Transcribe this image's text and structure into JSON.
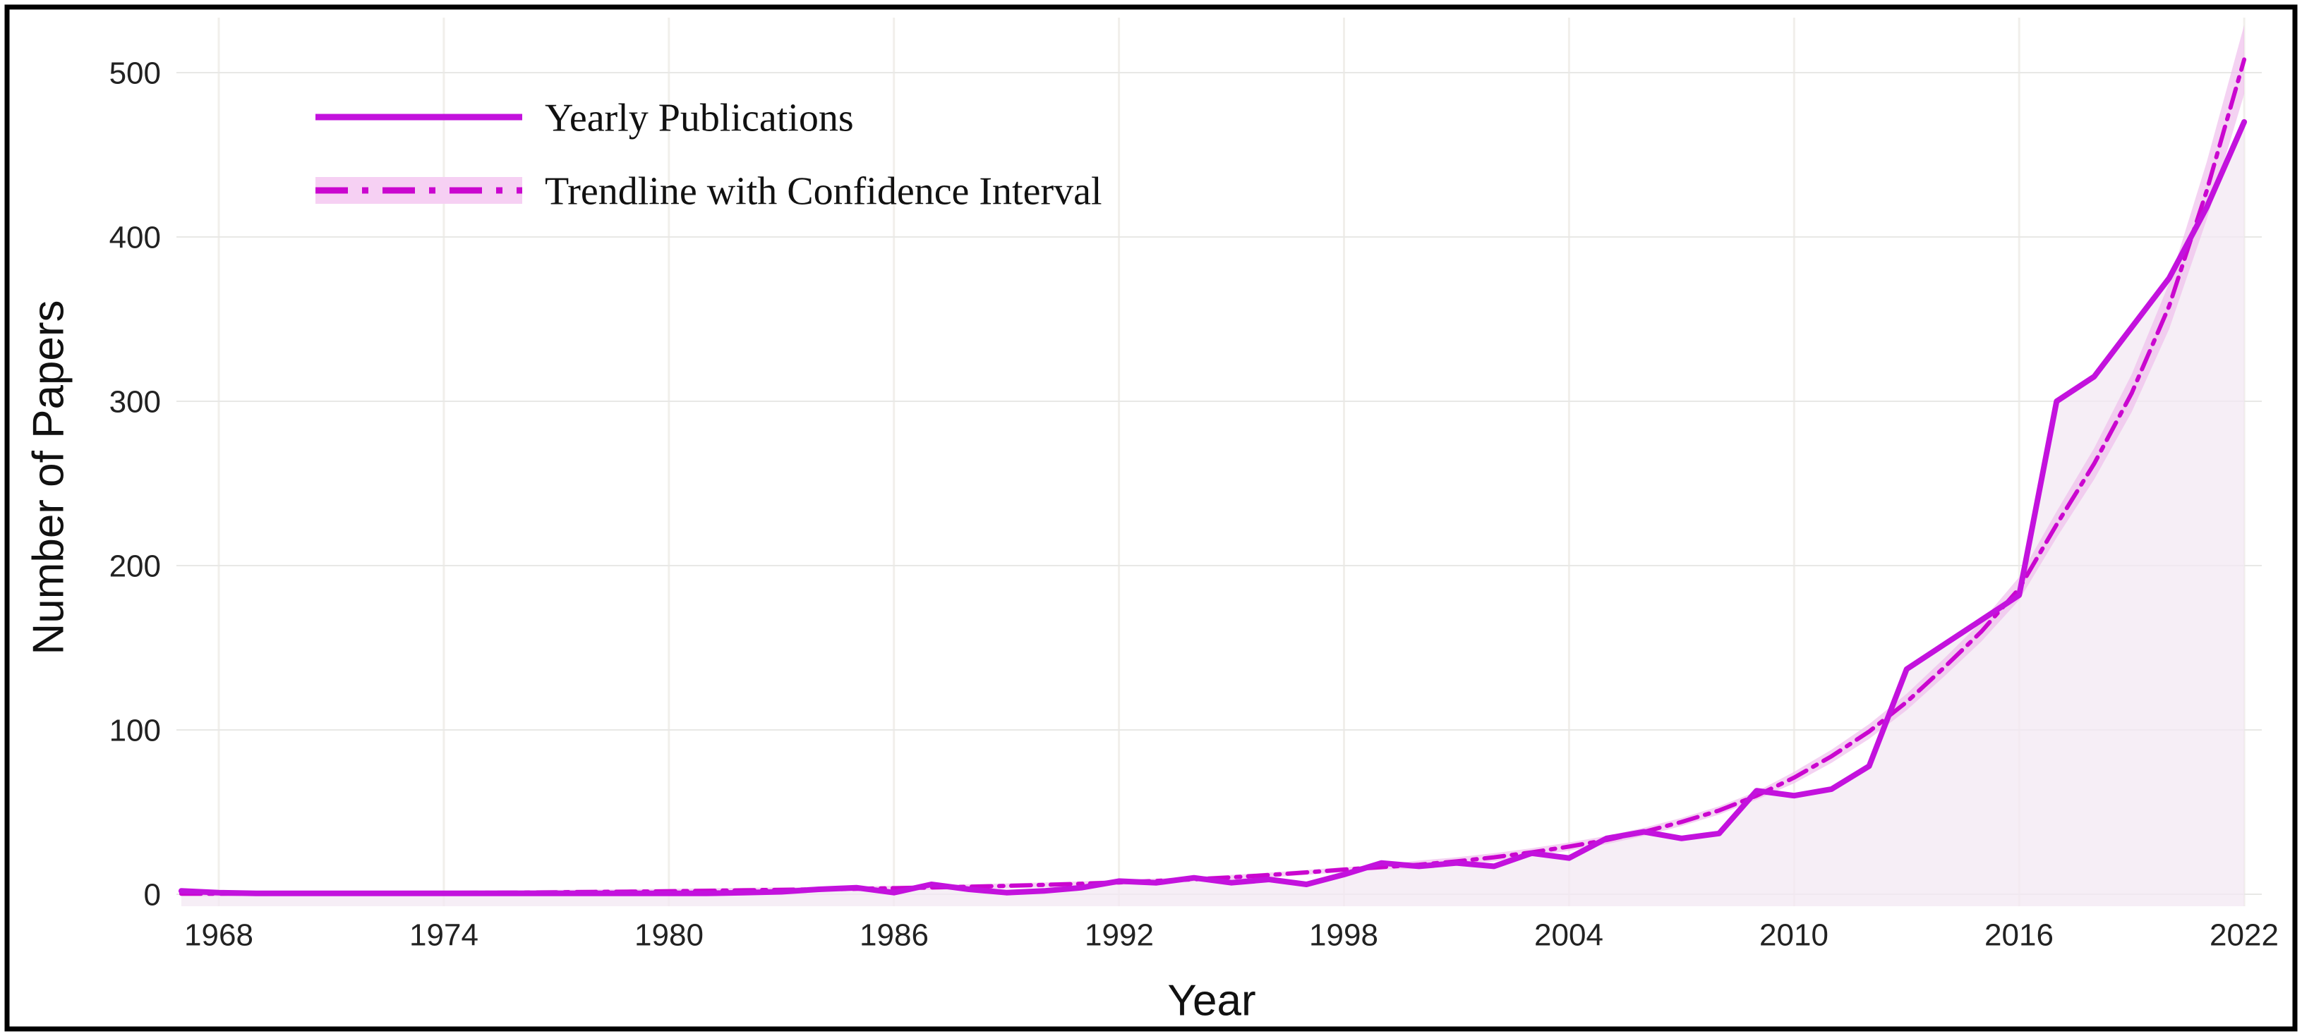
{
  "window": {
    "title": "Yearly Publications Chart"
  },
  "colors": {
    "background": "#ffffff",
    "area_fill": "#f3e8f3",
    "grid_horizontal": "#e8e8e6",
    "grid_vertical": "#f1efeb",
    "frame_border": "#000000",
    "text": "#1a1a1a",
    "line_color": "#c312dd",
    "trend_color": "#ca06cf",
    "band_color": "#f0bfec",
    "legend_band_color": "#f6d0f3"
  },
  "chart_data": {
    "type": "line",
    "title": "",
    "xlabel": "Year",
    "ylabel": "Number of Papers",
    "grid": true,
    "legend_position": "upper-left",
    "x_ticks": [
      1968,
      1974,
      1980,
      1986,
      1992,
      1998,
      2004,
      2010,
      2016,
      2022
    ],
    "x_tick_labels": [
      "1968",
      "1974",
      "1980",
      "1986",
      "1992",
      "1998",
      "2004",
      "2010",
      "2016",
      "2022"
    ],
    "y_ticks": [
      0,
      100,
      200,
      300,
      400,
      500
    ],
    "y_tick_labels": [
      "0",
      "100",
      "200",
      "300",
      "400",
      "500"
    ],
    "xlim": [
      1966.9,
      2022.5
    ],
    "ylim": [
      -7,
      533
    ],
    "x": [
      1967,
      1968,
      1969,
      1970,
      1971,
      1972,
      1973,
      1974,
      1975,
      1976,
      1977,
      1978,
      1979,
      1980,
      1981,
      1982,
      1983,
      1984,
      1985,
      1986,
      1987,
      1988,
      1989,
      1990,
      1991,
      1992,
      1993,
      1994,
      1995,
      1996,
      1997,
      1998,
      1999,
      2000,
      2001,
      2002,
      2003,
      2004,
      2005,
      2006,
      2007,
      2008,
      2009,
      2010,
      2011,
      2012,
      2013,
      2014,
      2015,
      2016,
      2017,
      2018,
      2019,
      2020,
      2021,
      2022
    ],
    "series": [
      {
        "name": "Yearly Publications",
        "type": "line",
        "style": "solid",
        "color": "#c312dd",
        "values": [
          2,
          1,
          0.5,
          0.5,
          0.5,
          0.5,
          0.5,
          0.5,
          0.5,
          0.5,
          0.5,
          0.5,
          0.5,
          0.5,
          0.5,
          1,
          1.5,
          3,
          4,
          1,
          6,
          3,
          1,
          2,
          4,
          8,
          7,
          10,
          7,
          9,
          6,
          12,
          19,
          17,
          19,
          17,
          25,
          22,
          34,
          38,
          34,
          37,
          63,
          60,
          64,
          78,
          137,
          152,
          167,
          182,
          300,
          315,
          345,
          375,
          418,
          470
        ]
      },
      {
        "name": "Trendline with Confidence Interval",
        "type": "line",
        "style": "dash-dot",
        "color": "#ca06cf",
        "band_color": "#f0bfec",
        "values": [
          0.3,
          0.35,
          0.4,
          0.45,
          0.5,
          0.6,
          0.7,
          0.8,
          0.9,
          1.0,
          1.2,
          1.4,
          1.6,
          1.8,
          2.1,
          2.4,
          2.7,
          3.0,
          3.3,
          3.7,
          4.1,
          4.6,
          5.1,
          5.7,
          6.4,
          7.2,
          8.1,
          9.1,
          10.3,
          11.7,
          13.3,
          15,
          16.5,
          18,
          20,
          22.5,
          25.5,
          29,
          33,
          38,
          44,
          51,
          60,
          71,
          84,
          99,
          117,
          138,
          160,
          186,
          225,
          262,
          305,
          358,
          428,
          508
        ],
        "ci_half_width": [
          1.5,
          1.5,
          1.5,
          1.5,
          1.5,
          1.5,
          1.5,
          1.5,
          1.5,
          1.5,
          1.5,
          1.5,
          1.5,
          1.5,
          1.5,
          1.5,
          1.5,
          1.5,
          1.5,
          1.5,
          1.5,
          1.5,
          1.5,
          1.5,
          1.5,
          1.5,
          1.5,
          1.5,
          1.5,
          1.5,
          1.5,
          1.5,
          1.5,
          2.5,
          2.5,
          2.5,
          2.5,
          2.5,
          2.5,
          2.5,
          2.5,
          2.5,
          2.5,
          3.5,
          4,
          4.5,
          5,
          5.5,
          6,
          7,
          8,
          9.5,
          11.5,
          14,
          17.5,
          21
        ]
      }
    ]
  },
  "legend": {
    "items": [
      {
        "label": "Yearly Publications",
        "swatch": "solid-line"
      },
      {
        "label": "Trendline with Confidence Interval",
        "swatch": "dash-dot-line-with-band"
      }
    ]
  }
}
